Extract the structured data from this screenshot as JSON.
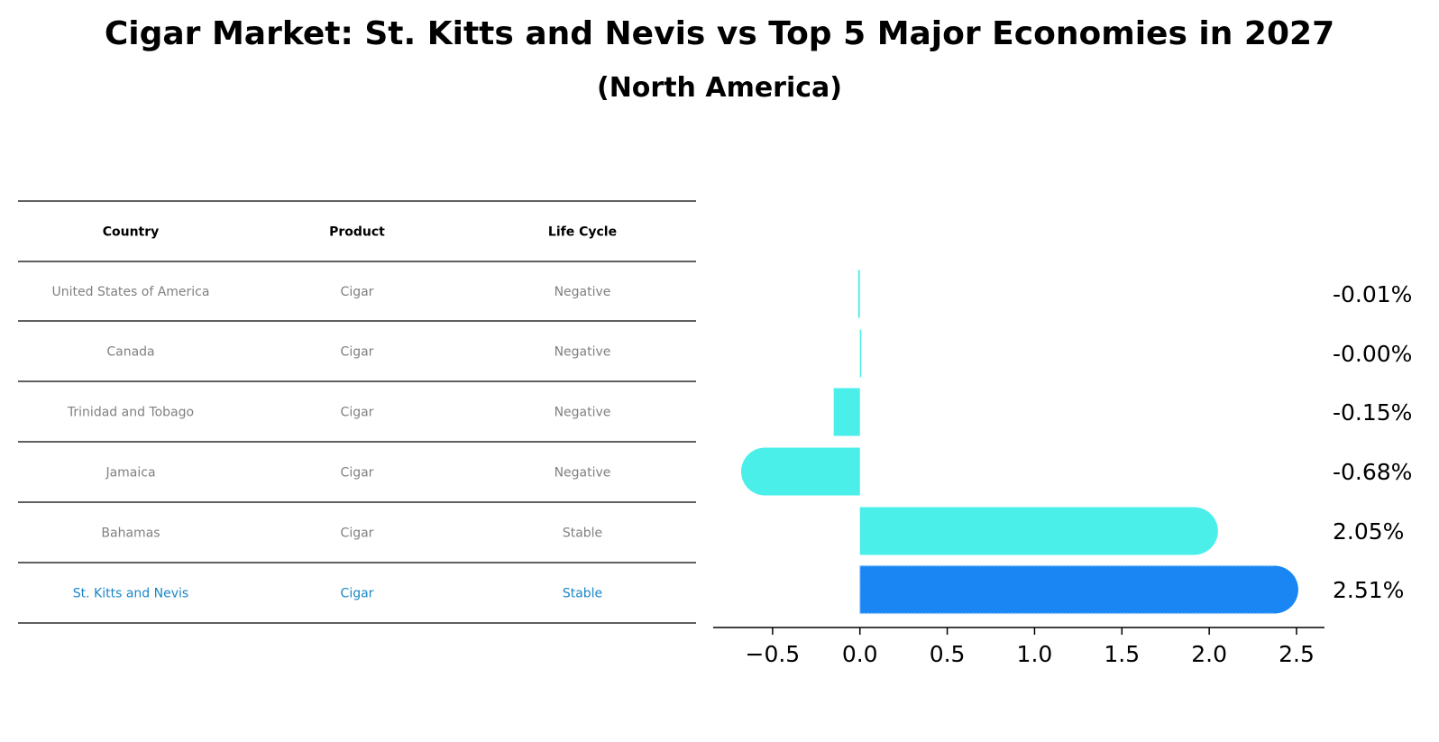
{
  "title": "Cigar Market: St. Kitts and Nevis vs Top 5 Major Economies in 2027",
  "subtitle": "(North America)",
  "table": {
    "headers": [
      "Country",
      "Product",
      "Life Cycle"
    ],
    "rows": [
      [
        "United States of America",
        "Cigar",
        "Negative"
      ],
      [
        "Canada",
        "Cigar",
        "Negative"
      ],
      [
        "Trinidad and Tobago",
        "Cigar",
        "Negative"
      ],
      [
        "Jamaica",
        "Cigar",
        "Negative"
      ],
      [
        "Bahamas",
        "Cigar",
        "Stable"
      ],
      [
        "St. Kitts and Nevis",
        "Cigar",
        "Stable"
      ]
    ],
    "highlight_row": 5
  },
  "colors": {
    "bar": "#4aefea",
    "highlight_bar": "#1a86f4",
    "row_text": "#808080",
    "highlight_text": "#1a86c8",
    "axis": "#000000"
  },
  "chart_data": {
    "type": "bar",
    "orientation": "horizontal",
    "categories": [
      "United States of America",
      "Canada",
      "Trinidad and Tobago",
      "Jamaica",
      "Bahamas",
      "St. Kitts and Nevis"
    ],
    "values": [
      -0.01,
      -0.0,
      -0.15,
      -0.68,
      2.05,
      2.51
    ],
    "labels": [
      "-0.01%",
      "-0.00%",
      "-0.15%",
      "-0.68%",
      "2.05%",
      "2.51%"
    ],
    "highlight_index": 5,
    "xlim": [
      -0.84,
      2.66
    ],
    "xticks": [
      -0.5,
      0.0,
      0.5,
      1.0,
      1.5,
      2.0,
      2.5
    ],
    "xtick_labels": [
      "−0.5",
      "0.0",
      "0.5",
      "1.0",
      "1.5",
      "2.0",
      "2.5"
    ],
    "xlabel": "",
    "ylabel": "",
    "grid": false
  }
}
